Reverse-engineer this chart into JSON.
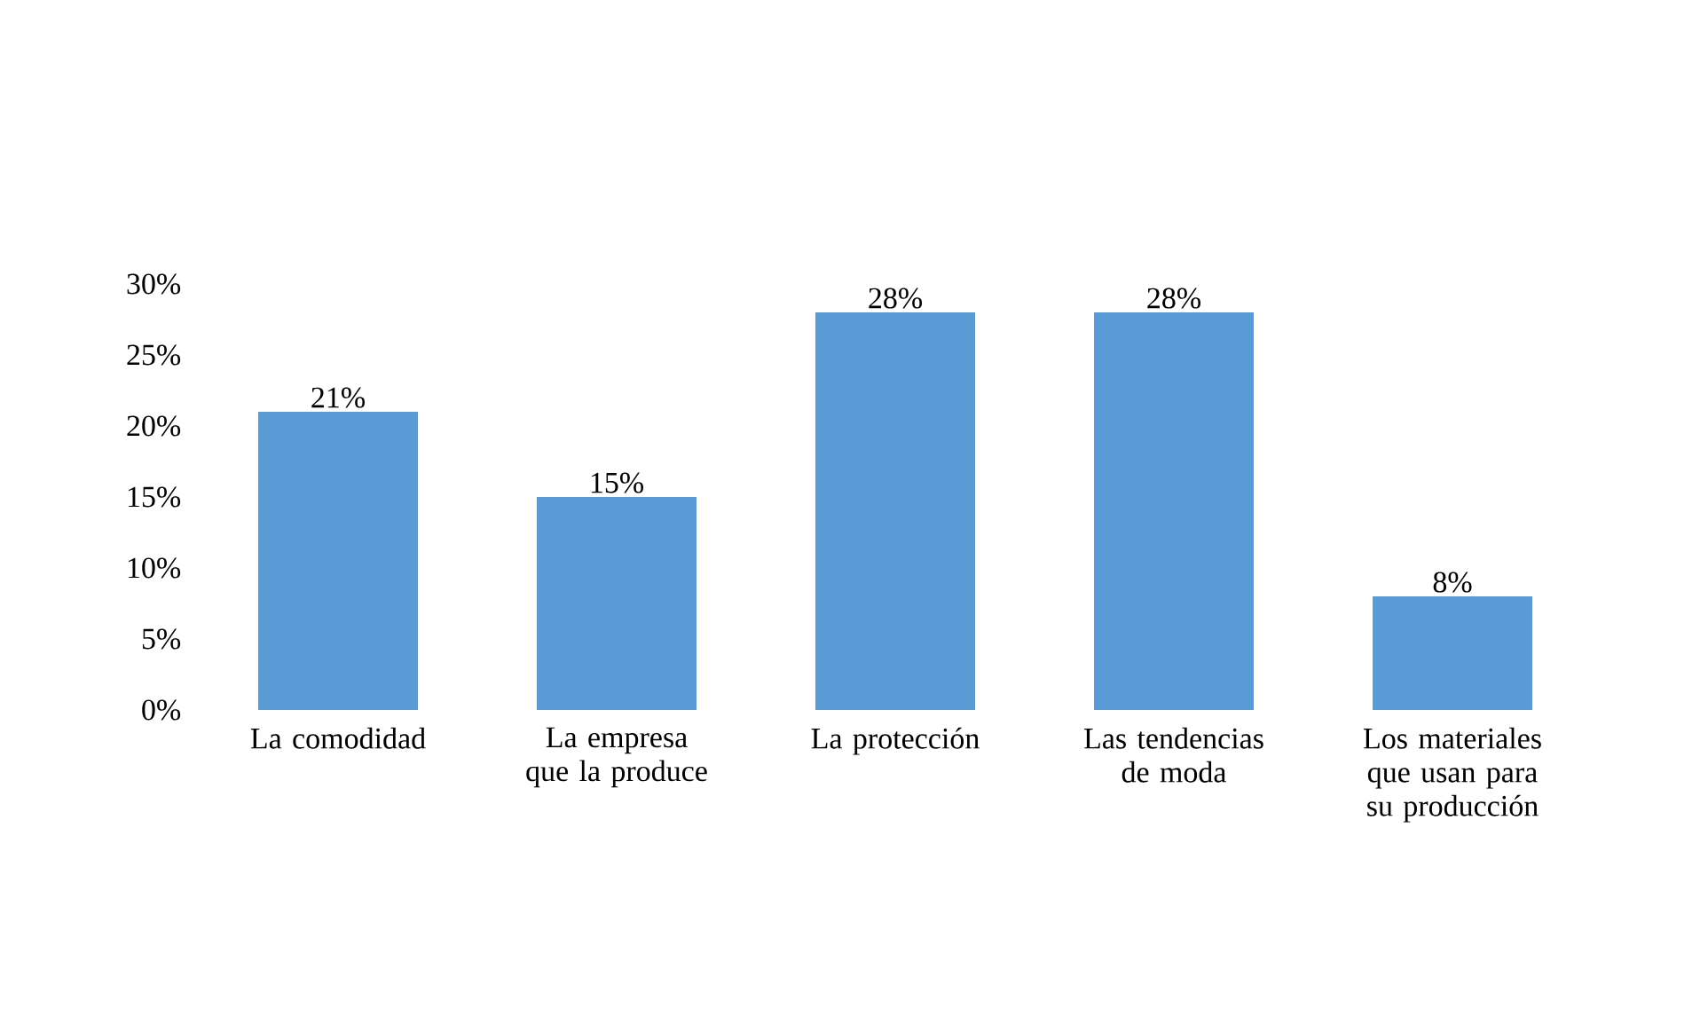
{
  "chart_data": {
    "type": "bar",
    "categories": [
      "La comodidad",
      "La empresa que la produce",
      "La protección",
      "Las tendencias de moda",
      "Los materiales que usan para su producción"
    ],
    "values": [
      21,
      15,
      28,
      28,
      8
    ],
    "value_labels": [
      "21%",
      "15%",
      "28%",
      "28%",
      "8%"
    ],
    "color": "#5b9bd5",
    "ylim": [
      0,
      30
    ],
    "yticks": [
      {
        "value": 0,
        "label": "0%"
      },
      {
        "value": 5,
        "label": "5%"
      },
      {
        "value": 10,
        "label": "10%"
      },
      {
        "value": 15,
        "label": "15%"
      },
      {
        "value": 20,
        "label": "20%"
      },
      {
        "value": 25,
        "label": "25%"
      },
      {
        "value": 30,
        "label": "30%"
      }
    ],
    "grid": false
  }
}
